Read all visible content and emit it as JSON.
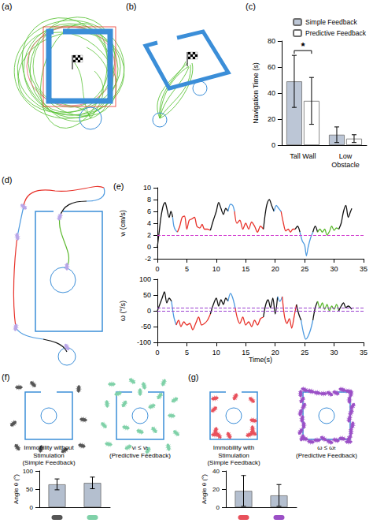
{
  "panel_labels": [
    "(a)",
    "(b)",
    "(c)",
    "(d)",
    "(e)",
    "(f)",
    "(g)"
  ],
  "diagrams": {
    "f": {
      "captions": [
        "Immobility without Stimulation (Simple Feedback)",
        "vₗ ≤ vₜ (Predictive Feedback)"
      ]
    },
    "g": {
      "captions": [
        "Immobility with Stimulation (Simple Feedback)",
        "ω ≤ ωₜ (Predictive Feedback)"
      ]
    }
  },
  "chart_data": [
    {
      "type": "bar",
      "ylabel": "Navigation Time (s)",
      "categories": [
        "Tall Wall",
        "Low Obstacle"
      ],
      "series": [
        {
          "name": "Simple Feedback",
          "color": "#bcc6d6",
          "values": [
            49,
            8
          ],
          "errors": [
            20,
            6
          ]
        },
        {
          "name": "Predictive Feedback",
          "color": "#ffffff",
          "values": [
            34,
            5
          ],
          "errors": [
            18,
            3
          ]
        }
      ],
      "ylim": [
        0,
        80
      ],
      "yticks": [
        0,
        20,
        40,
        60,
        80
      ],
      "grid": false,
      "legend": "top-right",
      "annotations": [
        {
          "text": "*",
          "category": "Tall Wall"
        }
      ]
    },
    {
      "type": "line",
      "ylabel": "vₗ (cm/s)",
      "xlim": [
        0,
        35
      ],
      "xticks": [
        0,
        5,
        10,
        15,
        20,
        25,
        30,
        35
      ],
      "ylim": [
        -2,
        10
      ],
      "yticks": [
        -2,
        0,
        2,
        4,
        6,
        8,
        10
      ],
      "grid": false,
      "thresholds": [
        2
      ],
      "threshold_color": "#d23fd0",
      "series": [
        {
          "color": "#111111",
          "x": [
            0,
            0.3,
            0.6,
            1,
            1.3,
            1.6,
            2,
            2.3,
            2.6
          ],
          "values": [
            0,
            2.5,
            5,
            7,
            7.5,
            6.5,
            5,
            6,
            5
          ]
        },
        {
          "color": "#4f9be0",
          "x": [
            2.6,
            2.8,
            3.1,
            3.4
          ],
          "values": [
            5,
            3.5,
            2.8,
            2.5
          ]
        },
        {
          "color": "#e8322a",
          "x": [
            3.4,
            3.8,
            4.2,
            4.6,
            5,
            5.4,
            5.8,
            6.3,
            6.7,
            7.2,
            7.6,
            8,
            8.5,
            9
          ],
          "values": [
            2.5,
            3.5,
            5,
            5.2,
            3,
            4.5,
            4.7,
            5,
            3.5,
            3.2,
            3.8,
            3,
            3,
            2.8
          ]
        },
        {
          "color": "#111111",
          "x": [
            9,
            9.5,
            10,
            10.4,
            10.8,
            11.2,
            11.6,
            12
          ],
          "values": [
            2.8,
            4.5,
            6,
            7.5,
            6.5,
            5.5,
            6.5,
            6
          ]
        },
        {
          "color": "#4f9be0",
          "x": [
            12,
            12.4,
            12.8,
            13.1
          ],
          "values": [
            6,
            7.2,
            7,
            6
          ]
        },
        {
          "color": "#e8322a",
          "x": [
            13.1,
            13.5,
            14,
            14.5,
            15,
            15.5,
            16,
            16.5,
            17,
            17.5,
            18
          ],
          "values": [
            6,
            4,
            4.5,
            3,
            4,
            3,
            4.2,
            3.5,
            2.5,
            3.5,
            3
          ]
        },
        {
          "color": "#111111",
          "x": [
            18,
            18.3,
            18.6,
            19,
            19.4,
            19.8
          ],
          "values": [
            3,
            5.5,
            7.2,
            8,
            7,
            6
          ]
        },
        {
          "color": "#4f9be0",
          "x": [
            19.8,
            20.2,
            20.6,
            21
          ],
          "values": [
            6,
            7,
            6.5,
            6
          ]
        },
        {
          "color": "#e8322a",
          "x": [
            21,
            21.4,
            21.8,
            22.2,
            22.6,
            23,
            23.4
          ],
          "values": [
            6,
            4,
            2.7,
            3,
            2.5,
            3,
            3
          ]
        },
        {
          "color": "#111111",
          "x": [
            23.4,
            23.8,
            24.2
          ],
          "values": [
            3,
            3.5,
            2.5
          ]
        },
        {
          "color": "#4f9be0",
          "x": [
            24.2,
            24.6,
            25,
            25.3,
            25.6,
            26,
            26.4
          ],
          "values": [
            2.5,
            1,
            0.3,
            -1.5,
            0,
            1.5,
            2.5
          ]
        },
        {
          "color": "#111111",
          "x": [
            26.4,
            26.8,
            27.2
          ],
          "values": [
            2.5,
            3.5,
            2.5
          ]
        },
        {
          "color": "#5cb82e",
          "x": [
            27.2,
            27.6,
            28,
            28.4,
            28.8,
            29.2,
            29.6,
            30,
            30.4,
            30.8
          ],
          "values": [
            2.5,
            3,
            2.5,
            3,
            2,
            2.6,
            3.5,
            2.8,
            3.2,
            3
          ]
        },
        {
          "color": "#111111",
          "x": [
            30.8,
            31.2,
            31.6,
            32,
            32.4,
            32.8,
            33
          ],
          "values": [
            3,
            4,
            6,
            7,
            5,
            6,
            6.5
          ]
        }
      ]
    },
    {
      "type": "line",
      "ylabel": "ω (°/s)",
      "xlabel": "Time(s)",
      "xlim": [
        0,
        35
      ],
      "xticks": [
        0,
        5,
        10,
        15,
        20,
        25,
        30,
        35
      ],
      "ylim": [
        -100,
        100
      ],
      "yticks": [
        -100,
        -50,
        0,
        50,
        100
      ],
      "grid": false,
      "thresholds": [
        10,
        0
      ],
      "threshold_color": "#9a3fd0",
      "series": [
        {
          "color": "#111111",
          "x": [
            0,
            0.4,
            0.8,
            1.2,
            1.6,
            2,
            2.4
          ],
          "values": [
            0,
            20,
            40,
            60,
            25,
            40,
            30
          ]
        },
        {
          "color": "#4f9be0",
          "x": [
            2.4,
            2.8,
            3.2
          ],
          "values": [
            30,
            -20,
            -45
          ]
        },
        {
          "color": "#e8322a",
          "x": [
            3.2,
            3.6,
            4,
            4.5,
            5,
            5.5,
            6,
            6.5,
            7,
            7.5,
            8,
            8.5,
            9
          ],
          "values": [
            -45,
            -30,
            -50,
            -35,
            -45,
            -40,
            -60,
            -40,
            -20,
            -45,
            -40,
            -30,
            -10
          ]
        },
        {
          "color": "#111111",
          "x": [
            9,
            9.5,
            10,
            10.4,
            10.8,
            11.2,
            11.6,
            12
          ],
          "values": [
            -10,
            20,
            40,
            15,
            35,
            20,
            40,
            30
          ]
        },
        {
          "color": "#4f9be0",
          "x": [
            12,
            12.4,
            12.8,
            13.2
          ],
          "values": [
            30,
            55,
            40,
            10
          ]
        },
        {
          "color": "#e8322a",
          "x": [
            13.2,
            13.6,
            14,
            14.5,
            15,
            15.5,
            16,
            16.5,
            17,
            17.5,
            18
          ],
          "values": [
            10,
            -25,
            -40,
            -20,
            -45,
            -35,
            -50,
            -30,
            -45,
            -25,
            -20
          ]
        },
        {
          "color": "#111111",
          "x": [
            18,
            18.4,
            18.8,
            19.2,
            19.6,
            20,
            20.4
          ],
          "values": [
            -20,
            20,
            35,
            10,
            40,
            -10,
            45
          ]
        },
        {
          "color": "#4f9be0",
          "x": [
            20.4,
            20.8,
            21.2
          ],
          "values": [
            45,
            30,
            45
          ]
        },
        {
          "color": "#e8322a",
          "x": [
            21.2,
            21.6,
            22,
            22.4,
            22.8,
            23.2,
            23.6
          ],
          "values": [
            45,
            -20,
            -40,
            -25,
            -55,
            -20,
            20
          ]
        },
        {
          "color": "#111111",
          "x": [
            23.6,
            24,
            24.4
          ],
          "values": [
            20,
            -10,
            -30
          ]
        },
        {
          "color": "#4f9be0",
          "x": [
            24.4,
            24.8,
            25.2,
            25.6,
            26,
            26.4
          ],
          "values": [
            -30,
            -70,
            -90,
            -80,
            -60,
            -30
          ]
        },
        {
          "color": "#111111",
          "x": [
            26.4,
            26.8,
            27.2
          ],
          "values": [
            -30,
            10,
            30
          ]
        },
        {
          "color": "#5cb82e",
          "x": [
            27.2,
            27.6,
            28,
            28.4,
            28.8,
            29.2,
            29.6,
            30,
            30.4,
            30.8
          ],
          "values": [
            30,
            10,
            25,
            5,
            20,
            0,
            15,
            5,
            20,
            0
          ]
        },
        {
          "color": "#111111",
          "x": [
            30.8,
            31.2,
            31.6,
            32,
            32.4,
            33
          ],
          "values": [
            0,
            15,
            25,
            10,
            15,
            5
          ]
        }
      ]
    },
    {
      "type": "bar",
      "ylabel": "Angle θ (°)",
      "categories": [
        null,
        null
      ],
      "values": [
        63,
        67
      ],
      "errors": [
        15,
        16
      ],
      "color": "#b4bfcf",
      "ylim": [
        0,
        100
      ],
      "yticks": [
        0,
        50,
        100
      ],
      "grid": false
    },
    {
      "type": "bar",
      "ylabel": "Angle θ (°)",
      "categories": [
        null,
        null
      ],
      "values": [
        18,
        13
      ],
      "errors": [
        17,
        12
      ],
      "color": "#b4bfcf",
      "ylim": [
        0,
        40
      ],
      "yticks": [
        0,
        20,
        40
      ],
      "grid": false
    }
  ]
}
